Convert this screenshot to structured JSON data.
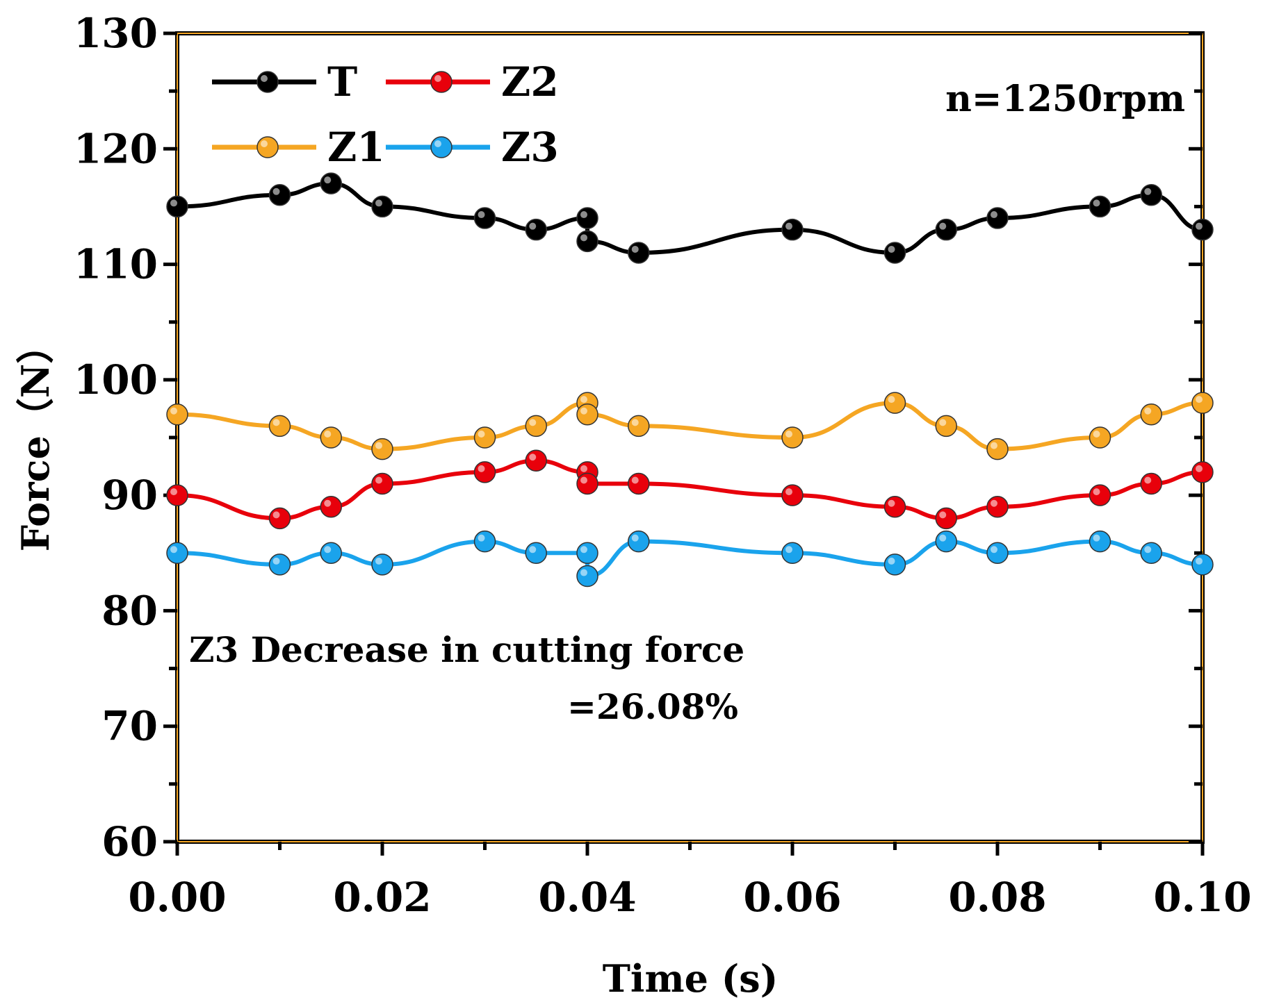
{
  "chart_data": {
    "type": "line",
    "title": "",
    "xlabel": "Time (s)",
    "ylabel": "Force（N）",
    "xlim": [
      0,
      0.1
    ],
    "ylim": [
      60,
      130
    ],
    "x_ticks": [
      "0.00",
      "0.02",
      "0.04",
      "0.06",
      "0.08",
      "0.10"
    ],
    "y_ticks": [
      "60",
      "70",
      "80",
      "90",
      "100",
      "110",
      "120",
      "130"
    ],
    "grid": false,
    "legend_position": "top-left",
    "x": [
      0,
      0.01,
      0.015,
      0.02,
      0.03,
      0.035,
      0.04,
      0.04,
      0.045,
      0.06,
      0.07,
      0.075,
      0.08,
      0.09,
      0.095,
      0.1
    ],
    "series": [
      {
        "name": "T",
        "color": "#000000",
        "values": [
          115,
          116,
          117,
          115,
          114,
          113,
          114,
          112,
          111,
          113,
          111,
          113,
          114,
          115,
          116,
          113
        ]
      },
      {
        "name": "Z2",
        "color": "#e8000b",
        "values": [
          90,
          88,
          89,
          91,
          92,
          93,
          92,
          91,
          91,
          90,
          89,
          88,
          89,
          90,
          91,
          92
        ]
      },
      {
        "name": "Z1",
        "color": "#f5a623",
        "values": [
          97,
          96,
          95,
          94,
          95,
          96,
          98,
          97,
          96,
          95,
          98,
          96,
          94,
          95,
          97,
          98
        ]
      },
      {
        "name": "Z3",
        "color": "#1aa3ec",
        "values": [
          85,
          84,
          85,
          84,
          86,
          85,
          85,
          83,
          86,
          85,
          84,
          86,
          85,
          86,
          85,
          84
        ]
      }
    ],
    "annotations": [
      {
        "text": "n=1250rpm"
      },
      {
        "text": "Z3 Decrease in  cutting force"
      },
      {
        "text": "=26.08%"
      }
    ]
  }
}
